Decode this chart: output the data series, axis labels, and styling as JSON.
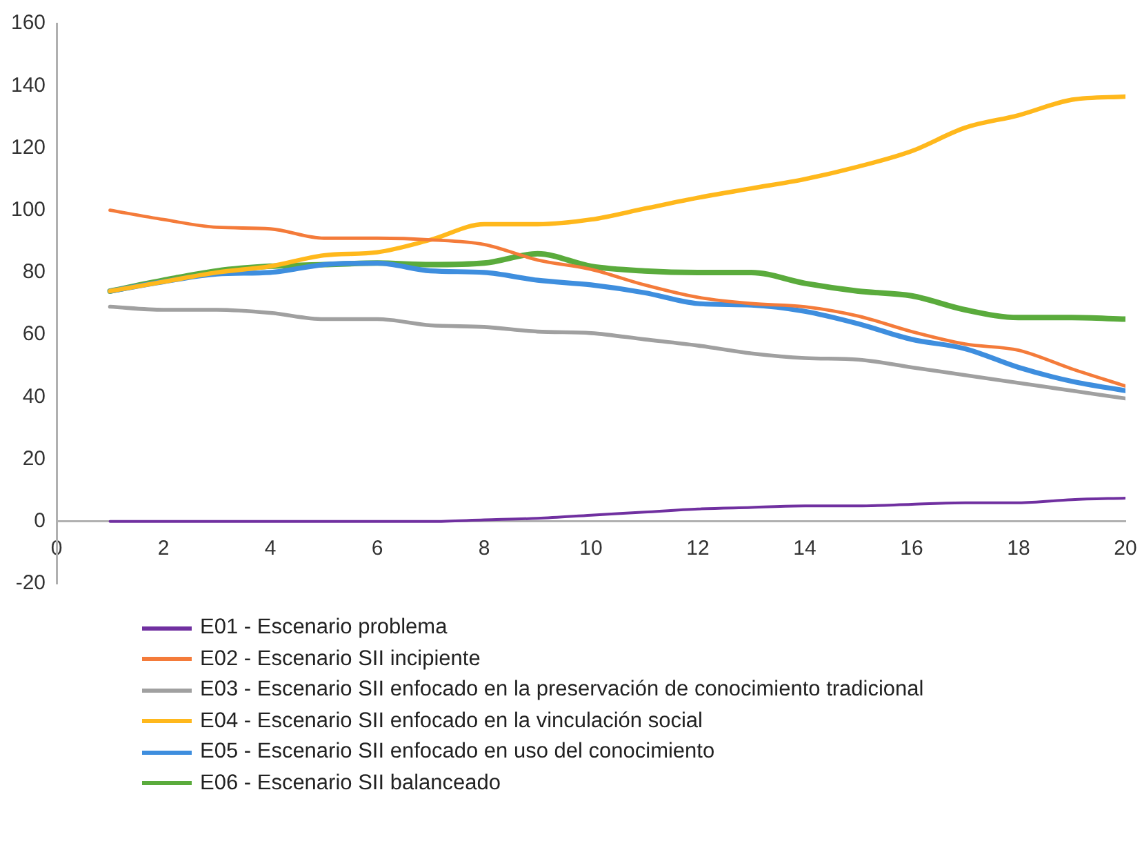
{
  "chart_data": {
    "type": "line",
    "x": [
      1,
      2,
      3,
      4,
      5,
      6,
      7,
      8,
      9,
      10,
      11,
      12,
      13,
      14,
      15,
      16,
      17,
      18,
      19,
      20
    ],
    "xlim": [
      0,
      20
    ],
    "xticks": [
      0,
      2,
      4,
      6,
      8,
      10,
      12,
      14,
      16,
      18,
      20
    ],
    "ylim": [
      -20,
      160
    ],
    "yticks": [
      -20,
      0,
      20,
      40,
      60,
      80,
      100,
      120,
      140,
      160
    ],
    "grid": false,
    "legend": "bottom",
    "marker": "none",
    "line_style": "solid",
    "series": [
      {
        "name": "E01 - Escenario problema",
        "color": "#7030a0",
        "values": [
          0,
          0,
          0,
          0,
          0,
          0,
          0,
          0.5,
          1,
          2,
          3,
          4,
          4.5,
          5,
          5,
          5.5,
          6,
          6,
          7,
          7.5
        ]
      },
      {
        "name": "E02 - Escenario SII incipiente",
        "color": "#f47b3a",
        "values": [
          100,
          97,
          94.5,
          94,
          91,
          91,
          90.5,
          89,
          84,
          81,
          76,
          72,
          70,
          69,
          66,
          61,
          57,
          55,
          49,
          43.5
        ]
      },
      {
        "name": "E03 - Escenario SII enfocado en la preservación de conocimiento tradicional",
        "color": "#a0a0a0",
        "values": [
          69,
          68,
          68,
          67,
          65,
          65,
          63,
          62.5,
          61,
          60.5,
          58.5,
          56.5,
          54,
          52.5,
          52,
          49.5,
          47,
          44.5,
          42,
          39.5
        ]
      },
      {
        "name": "E04 - Escenario SII enfocado en la vinculación social",
        "color": "#ffb81c",
        "values": [
          74,
          77,
          80,
          82,
          85.5,
          86.5,
          90.5,
          95.5,
          95.5,
          97,
          100.5,
          104,
          107,
          110,
          114,
          119,
          126.5,
          130.5,
          135.5,
          136.5
        ]
      },
      {
        "name": "E05 - Escenario SII enfocado en uso del conocimiento",
        "color": "#3e8ede",
        "values": [
          74,
          77,
          79.5,
          80,
          82.5,
          83,
          80.5,
          80,
          77.5,
          76,
          73.5,
          70,
          69.5,
          67.5,
          63.5,
          58.5,
          55.5,
          49.5,
          45,
          42
        ]
      },
      {
        "name": "E06 - Escenario SII balanceado",
        "color": "#5aab3c",
        "values": [
          74,
          77.5,
          80.5,
          82,
          82.5,
          83,
          82.5,
          83,
          86,
          82,
          80.5,
          80,
          80,
          76.5,
          74,
          72.5,
          68,
          65.5,
          65.5,
          65
        ]
      }
    ]
  }
}
